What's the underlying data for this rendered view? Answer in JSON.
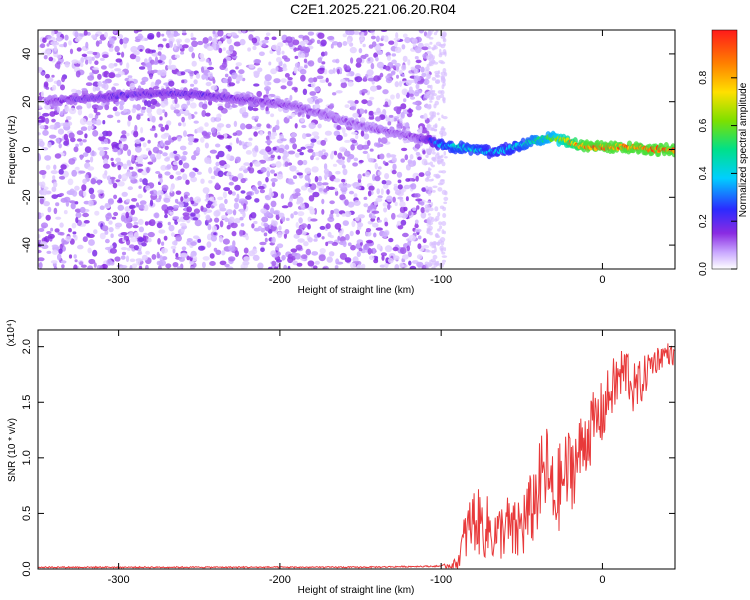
{
  "title": "C2E1.2025.221.06.20.R04",
  "chart_data": [
    {
      "type": "heatmap",
      "xlabel": "Height of straight line (km)",
      "ylabel": "Frequency (Hz)",
      "xlim": [
        -350,
        45
      ],
      "ylim": [
        -50,
        50
      ],
      "x_ticks": [
        -300,
        -200,
        -100,
        0
      ],
      "y_ticks": [
        -40,
        -20,
        0,
        20,
        40
      ],
      "x_tick_labels": [
        "-300",
        "-200",
        "-100",
        "0"
      ],
      "y_tick_labels": [
        "-40",
        "-20",
        "0",
        "20",
        "40"
      ],
      "colorbar": {
        "label": "Normalized spectral amplitude",
        "range": [
          0,
          1
        ],
        "ticks": [
          0.0,
          0.2,
          0.4,
          0.6,
          0.8
        ],
        "tick_labels": [
          "0.0",
          "0.2",
          "0.4",
          "0.6",
          "0.8"
        ],
        "colormap": "rainbow (white-violet-blue-cyan-green-yellow-red)"
      },
      "noise_region_x": [
        -350,
        -107
      ],
      "ridge_curve": {
        "x": [
          -345,
          -330,
          -310,
          -290,
          -270,
          -250,
          -230,
          -210,
          -190,
          -170,
          -150,
          -130,
          -115,
          -107,
          -100,
          -90,
          -80,
          -70,
          -60,
          -50,
          -40,
          -30,
          -20,
          -10,
          0,
          10,
          20,
          30,
          45
        ],
        "freq_hz": [
          20,
          21,
          22,
          23,
          23.5,
          23,
          21.5,
          20,
          18,
          14,
          10,
          7,
          5,
          4,
          2,
          1,
          0,
          -1,
          0,
          2,
          4,
          5,
          3,
          1,
          1,
          1,
          1,
          0,
          0
        ],
        "amplitude": [
          0.15,
          0.18,
          0.2,
          0.2,
          0.2,
          0.2,
          0.18,
          0.16,
          0.15,
          0.14,
          0.13,
          0.14,
          0.15,
          0.25,
          0.4,
          0.45,
          0.45,
          0.4,
          0.4,
          0.45,
          0.55,
          0.6,
          0.85,
          0.95,
          0.95,
          0.95,
          0.95,
          0.95,
          0.95
        ]
      }
    },
    {
      "type": "line",
      "xlabel": "Height of straight line (km)",
      "ylabel": "SNR (10 * v/v)",
      "y_multiplier": "(x10⁴)",
      "xlim": [
        -350,
        45
      ],
      "ylim": [
        0,
        2.15
      ],
      "x_ticks": [
        -300,
        -200,
        -100,
        0
      ],
      "y_ticks": [
        0.0,
        0.5,
        1.0,
        1.5,
        2.0
      ],
      "x_tick_labels": [
        "-300",
        "-200",
        "-100",
        "0"
      ],
      "y_tick_labels": [
        "0.0",
        "0.5",
        "1.0",
        "1.5",
        "2.0"
      ],
      "series": [
        {
          "color": "#e8393a",
          "x": [
            -350,
            -300,
            -250,
            -200,
            -150,
            -100,
            -90,
            -85,
            -80,
            -75,
            -70,
            -65,
            -60,
            -55,
            -50,
            -45,
            -40,
            -35,
            -30,
            -25,
            -20,
            -15,
            -10,
            -5,
            0,
            5,
            10,
            15,
            20,
            25,
            30,
            35,
            40,
            45
          ],
          "y": [
            0.01,
            0.01,
            0.01,
            0.01,
            0.01,
            0.02,
            0.05,
            0.3,
            0.45,
            0.4,
            0.35,
            0.3,
            0.4,
            0.3,
            0.4,
            0.5,
            0.7,
            0.9,
            0.6,
            0.8,
            0.9,
            1.0,
            1.2,
            1.3,
            1.4,
            1.6,
            1.7,
            1.8,
            1.6,
            1.7,
            1.85,
            1.9,
            1.95,
            1.9
          ],
          "noise_amplitude": [
            0,
            0,
            0,
            0,
            0,
            0.01,
            0.05,
            0.25,
            0.3,
            0.3,
            0.3,
            0.25,
            0.3,
            0.3,
            0.35,
            0.35,
            0.4,
            0.45,
            0.4,
            0.4,
            0.4,
            0.35,
            0.35,
            0.3,
            0.3,
            0.25,
            0.3,
            0.25,
            0.25,
            0.2,
            0.15,
            0.12,
            0.1,
            0.08
          ]
        }
      ]
    }
  ]
}
